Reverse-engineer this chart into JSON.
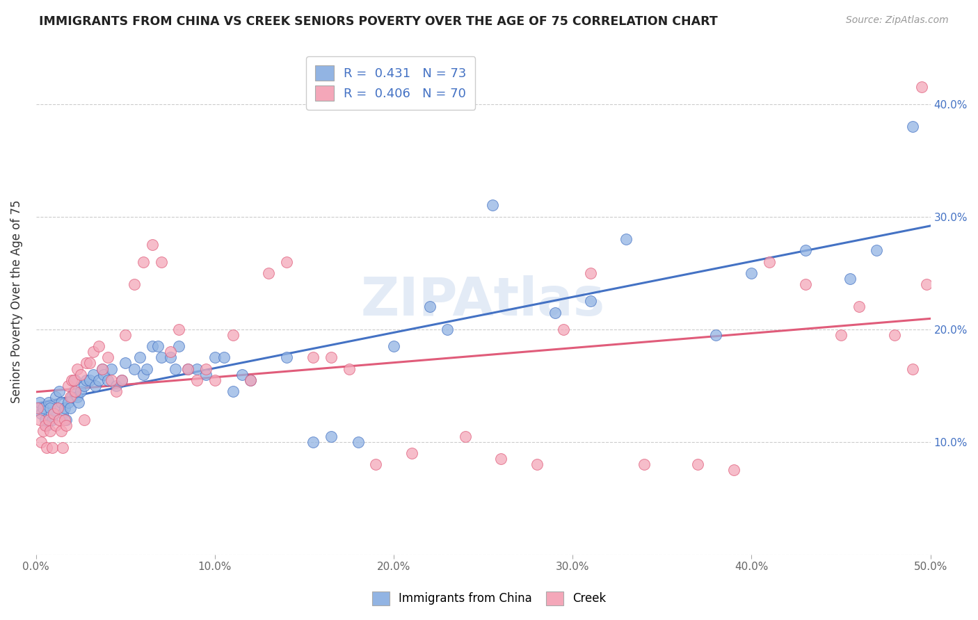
{
  "title": "IMMIGRANTS FROM CHINA VS CREEK SENIORS POVERTY OVER THE AGE OF 75 CORRELATION CHART",
  "source": "Source: ZipAtlas.com",
  "ylabel": "Seniors Poverty Over the Age of 75",
  "xlim": [
    0.0,
    0.5
  ],
  "ylim": [
    0.0,
    0.45
  ],
  "xticks": [
    0.0,
    0.1,
    0.2,
    0.3,
    0.4,
    0.5
  ],
  "yticks": [
    0.0,
    0.1,
    0.2,
    0.3,
    0.4
  ],
  "xticklabels": [
    "0.0%",
    "10.0%",
    "20.0%",
    "30.0%",
    "40.0%",
    "50.0%"
  ],
  "right_yticklabels": [
    "",
    "10.0%",
    "20.0%",
    "30.0%",
    "40.0%"
  ],
  "legend_labels": [
    "Immigrants from China",
    "Creek"
  ],
  "blue_color": "#92B4E3",
  "pink_color": "#F4A7B9",
  "blue_line_color": "#4472C4",
  "pink_line_color": "#E05C7A",
  "R_blue": 0.431,
  "N_blue": 73,
  "R_pink": 0.406,
  "N_pink": 70,
  "watermark": "ZIPAtlas",
  "blue_scatter_x": [
    0.001,
    0.002,
    0.003,
    0.004,
    0.005,
    0.006,
    0.007,
    0.008,
    0.009,
    0.01,
    0.011,
    0.012,
    0.013,
    0.014,
    0.015,
    0.016,
    0.017,
    0.018,
    0.019,
    0.02,
    0.021,
    0.022,
    0.023,
    0.024,
    0.025,
    0.027,
    0.028,
    0.03,
    0.032,
    0.033,
    0.035,
    0.037,
    0.038,
    0.04,
    0.042,
    0.045,
    0.048,
    0.05,
    0.055,
    0.058,
    0.06,
    0.062,
    0.065,
    0.068,
    0.07,
    0.075,
    0.078,
    0.08,
    0.085,
    0.09,
    0.095,
    0.1,
    0.105,
    0.11,
    0.115,
    0.12,
    0.14,
    0.155,
    0.165,
    0.18,
    0.2,
    0.22,
    0.23,
    0.255,
    0.29,
    0.31,
    0.33,
    0.38,
    0.4,
    0.43,
    0.455,
    0.47,
    0.49
  ],
  "blue_scatter_y": [
    0.13,
    0.135,
    0.125,
    0.13,
    0.12,
    0.115,
    0.135,
    0.13,
    0.12,
    0.125,
    0.14,
    0.13,
    0.145,
    0.135,
    0.125,
    0.13,
    0.12,
    0.135,
    0.13,
    0.14,
    0.145,
    0.155,
    0.14,
    0.135,
    0.145,
    0.15,
    0.155,
    0.155,
    0.16,
    0.15,
    0.155,
    0.165,
    0.16,
    0.155,
    0.165,
    0.15,
    0.155,
    0.17,
    0.165,
    0.175,
    0.16,
    0.165,
    0.185,
    0.185,
    0.175,
    0.175,
    0.165,
    0.185,
    0.165,
    0.165,
    0.16,
    0.175,
    0.175,
    0.145,
    0.16,
    0.155,
    0.175,
    0.1,
    0.105,
    0.1,
    0.185,
    0.22,
    0.2,
    0.31,
    0.215,
    0.225,
    0.28,
    0.195,
    0.25,
    0.27,
    0.245,
    0.27,
    0.38
  ],
  "pink_scatter_x": [
    0.001,
    0.002,
    0.003,
    0.004,
    0.005,
    0.006,
    0.007,
    0.008,
    0.009,
    0.01,
    0.011,
    0.012,
    0.013,
    0.014,
    0.015,
    0.016,
    0.017,
    0.018,
    0.019,
    0.02,
    0.021,
    0.022,
    0.023,
    0.025,
    0.027,
    0.028,
    0.03,
    0.032,
    0.035,
    0.037,
    0.04,
    0.042,
    0.045,
    0.048,
    0.05,
    0.055,
    0.06,
    0.065,
    0.07,
    0.075,
    0.08,
    0.085,
    0.09,
    0.095,
    0.1,
    0.11,
    0.12,
    0.13,
    0.14,
    0.155,
    0.165,
    0.175,
    0.19,
    0.21,
    0.24,
    0.26,
    0.28,
    0.295,
    0.31,
    0.34,
    0.37,
    0.39,
    0.41,
    0.43,
    0.45,
    0.46,
    0.48,
    0.49,
    0.495,
    0.498
  ],
  "pink_scatter_y": [
    0.13,
    0.12,
    0.1,
    0.11,
    0.115,
    0.095,
    0.12,
    0.11,
    0.095,
    0.125,
    0.115,
    0.13,
    0.12,
    0.11,
    0.095,
    0.12,
    0.115,
    0.15,
    0.14,
    0.155,
    0.155,
    0.145,
    0.165,
    0.16,
    0.12,
    0.17,
    0.17,
    0.18,
    0.185,
    0.165,
    0.175,
    0.155,
    0.145,
    0.155,
    0.195,
    0.24,
    0.26,
    0.275,
    0.26,
    0.18,
    0.2,
    0.165,
    0.155,
    0.165,
    0.155,
    0.195,
    0.155,
    0.25,
    0.26,
    0.175,
    0.175,
    0.165,
    0.08,
    0.09,
    0.105,
    0.085,
    0.08,
    0.2,
    0.25,
    0.08,
    0.08,
    0.075,
    0.26,
    0.24,
    0.195,
    0.22,
    0.195,
    0.165,
    0.415,
    0.24
  ]
}
